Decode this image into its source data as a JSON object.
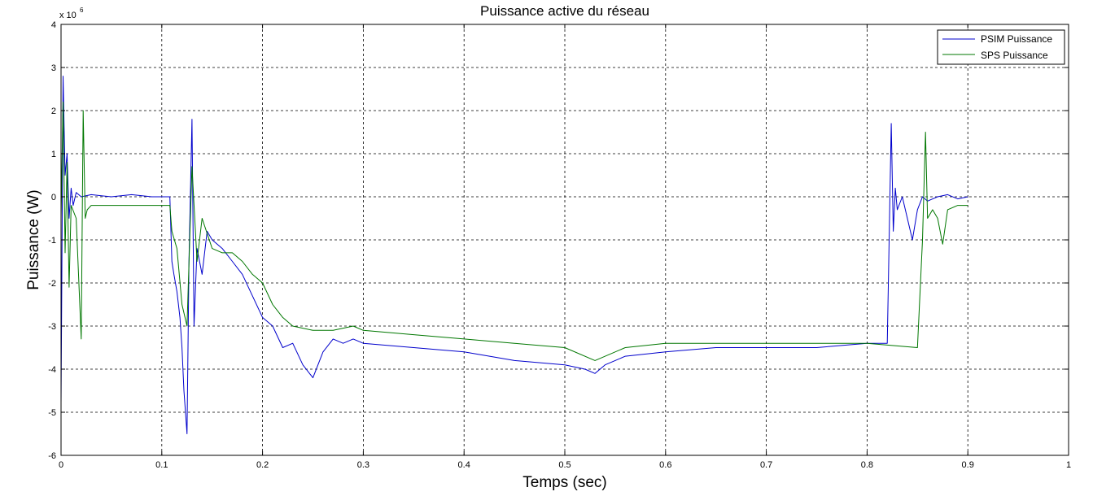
{
  "chart_data": {
    "type": "line",
    "title": "Puissance active du réseau",
    "xlabel": "Temps (sec)",
    "ylabel": "Puissance (W)",
    "exponent_base": "x 10",
    "exponent_power": "6",
    "xlim": [
      0,
      1
    ],
    "ylim": [
      -6,
      4
    ],
    "xticks": [
      0,
      0.1,
      0.2,
      0.3,
      0.4,
      0.5,
      0.6,
      0.7,
      0.8,
      0.9,
      1
    ],
    "xtick_labels": [
      "0",
      "0.1",
      "0.2",
      "0.3",
      "0.4",
      "0.5",
      "0.6",
      "0.7",
      "0.8",
      "0.9",
      "1"
    ],
    "yticks": [
      -6,
      -5,
      -4,
      -3,
      -2,
      -1,
      0,
      1,
      2,
      3,
      4
    ],
    "ytick_labels": [
      "-6",
      "-5",
      "-4",
      "-3",
      "-2",
      "-1",
      "0",
      "1",
      "2",
      "3",
      "4"
    ],
    "grid": true,
    "legend_position": "top-right",
    "series": [
      {
        "name": "PSIM Puissance",
        "color": "#0000cc",
        "x": [
          0,
          0.002,
          0.004,
          0.006,
          0.008,
          0.01,
          0.012,
          0.015,
          0.02,
          0.03,
          0.05,
          0.07,
          0.09,
          0.108,
          0.11,
          0.112,
          0.115,
          0.118,
          0.12,
          0.122,
          0.125,
          0.127,
          0.13,
          0.132,
          0.135,
          0.14,
          0.145,
          0.15,
          0.16,
          0.17,
          0.18,
          0.19,
          0.2,
          0.21,
          0.22,
          0.23,
          0.24,
          0.25,
          0.26,
          0.27,
          0.28,
          0.29,
          0.3,
          0.35,
          0.4,
          0.45,
          0.5,
          0.52,
          0.53,
          0.54,
          0.55,
          0.56,
          0.6,
          0.65,
          0.7,
          0.75,
          0.8,
          0.82,
          0.824,
          0.826,
          0.828,
          0.83,
          0.835,
          0.84,
          0.845,
          0.85,
          0.855,
          0.86,
          0.87,
          0.88,
          0.89,
          0.9
        ],
        "y": [
          -4.8,
          2.8,
          0.5,
          1.0,
          -0.5,
          0.2,
          -0.2,
          0.1,
          0.0,
          0.05,
          0.0,
          0.05,
          0.0,
          0.0,
          -1.5,
          -1.8,
          -2.2,
          -2.8,
          -3.5,
          -4.5,
          -5.5,
          -1.5,
          1.8,
          -3.0,
          -1.2,
          -1.8,
          -0.8,
          -1.0,
          -1.2,
          -1.5,
          -1.8,
          -2.3,
          -2.8,
          -3.0,
          -3.5,
          -3.4,
          -3.9,
          -4.2,
          -3.6,
          -3.3,
          -3.4,
          -3.3,
          -3.4,
          -3.5,
          -3.6,
          -3.8,
          -3.9,
          -4.0,
          -4.1,
          -3.9,
          -3.8,
          -3.7,
          -3.6,
          -3.5,
          -3.5,
          -3.5,
          -3.4,
          -3.4,
          1.7,
          -0.8,
          0.2,
          -0.3,
          0.0,
          -0.5,
          -1.0,
          -0.3,
          0.0,
          -0.1,
          0.0,
          0.05,
          -0.05,
          0.0
        ]
      },
      {
        "name": "SPS Puissance",
        "color": "#007700",
        "x": [
          0,
          0.002,
          0.004,
          0.006,
          0.008,
          0.01,
          0.015,
          0.02,
          0.022,
          0.024,
          0.026,
          0.03,
          0.05,
          0.07,
          0.09,
          0.108,
          0.11,
          0.115,
          0.12,
          0.125,
          0.13,
          0.135,
          0.14,
          0.15,
          0.16,
          0.17,
          0.18,
          0.19,
          0.2,
          0.21,
          0.22,
          0.23,
          0.25,
          0.27,
          0.29,
          0.3,
          0.35,
          0.4,
          0.45,
          0.5,
          0.53,
          0.56,
          0.6,
          0.7,
          0.8,
          0.85,
          0.855,
          0.858,
          0.86,
          0.865,
          0.87,
          0.875,
          0.88,
          0.89,
          0.9
        ],
        "y": [
          -0.5,
          2.2,
          -1.3,
          0.8,
          -2.1,
          -0.2,
          -0.5,
          -3.3,
          2.0,
          -0.5,
          -0.3,
          -0.2,
          -0.2,
          -0.2,
          -0.2,
          -0.2,
          -0.8,
          -1.2,
          -2.5,
          -3.0,
          0.7,
          -1.5,
          -0.5,
          -1.2,
          -1.3,
          -1.3,
          -1.5,
          -1.8,
          -2.0,
          -2.5,
          -2.8,
          -3.0,
          -3.1,
          -3.1,
          -3.0,
          -3.1,
          -3.2,
          -3.3,
          -3.4,
          -3.5,
          -3.8,
          -3.5,
          -3.4,
          -3.4,
          -3.4,
          -3.5,
          -1.0,
          1.5,
          -0.5,
          -0.3,
          -0.5,
          -1.1,
          -0.3,
          -0.2,
          -0.2
        ]
      }
    ]
  }
}
